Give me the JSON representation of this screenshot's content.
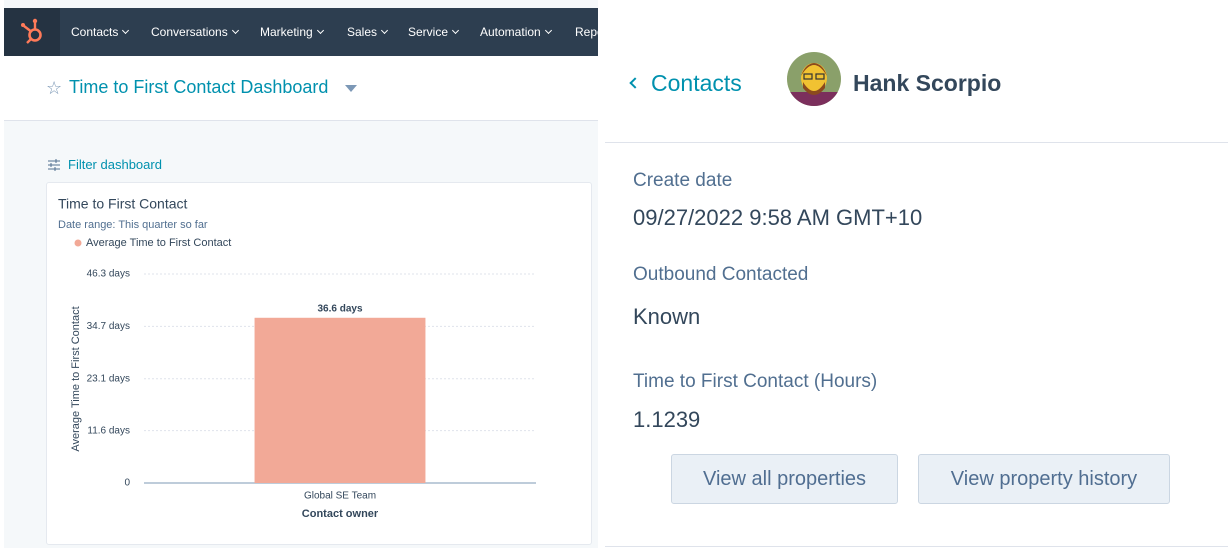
{
  "nav": {
    "items": [
      "Contacts",
      "Conversations",
      "Marketing",
      "Sales",
      "Service",
      "Automation",
      "Reports"
    ]
  },
  "dashboard": {
    "title": "Time to First Contact Dashboard",
    "filter": "Filter dashboard"
  },
  "chart_data": {
    "type": "bar",
    "title": "Time to First Contact",
    "subtitle": "Date range: This quarter so far",
    "legend": "Average Time to First Contact",
    "y_label": "Average Time to First Contact",
    "x_label": "Contact owner",
    "categories": [
      "Global SE Team"
    ],
    "values": [
      36.6
    ],
    "value_labels": [
      "36.6 days"
    ],
    "color": "#f2a997",
    "ylim": [
      0,
      46.3
    ],
    "yticks": [
      0,
      {
        "value": 11.6,
        "label": "11.6 days"
      },
      {
        "value": 23.1,
        "label": "23.1 days"
      },
      {
        "value": 34.7,
        "label": "34.7 days"
      },
      {
        "value": 46.3,
        "label": "46.3 days"
      }
    ],
    "grid": true
  },
  "contact": {
    "back": "Contacts",
    "name": "Hank Scorpio",
    "fields": [
      {
        "label": "Create date",
        "value": "09/27/2022 9:58 AM GMT+10"
      },
      {
        "label": "Outbound Contacted",
        "value": "Known"
      },
      {
        "label": "Time to First Contact (Hours)",
        "value": "1.1239"
      }
    ],
    "buttons": [
      "View all properties",
      "View property history"
    ]
  }
}
